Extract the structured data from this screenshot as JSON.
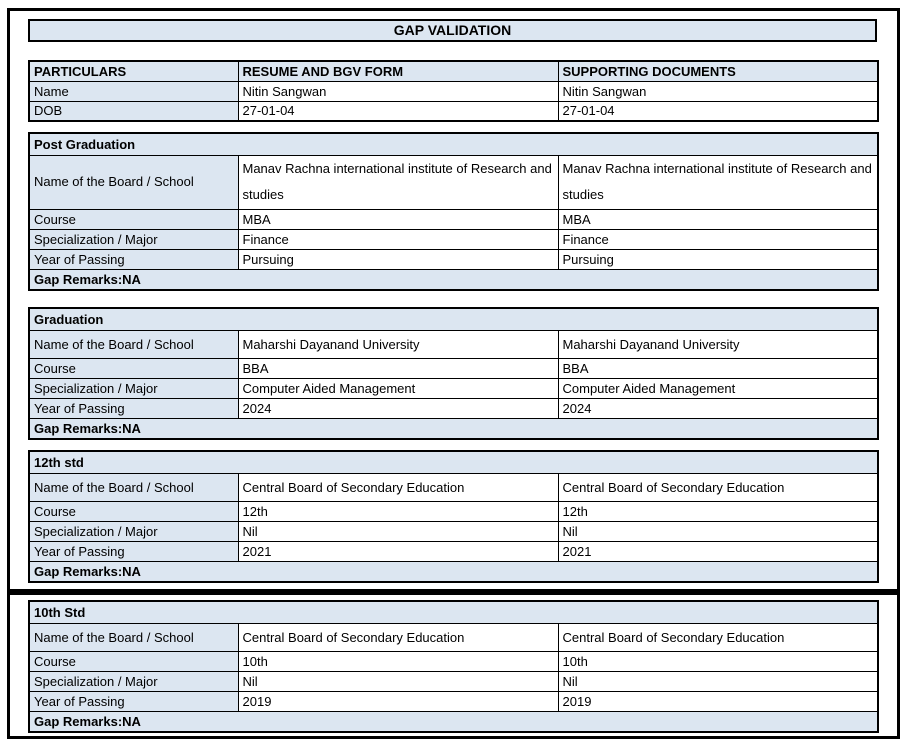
{
  "title": "GAP VALIDATION",
  "colors": {
    "accent_fill": "#dce6f1",
    "border": "#000000",
    "background": "#ffffff"
  },
  "table": {
    "headers": [
      "PARTICULARS",
      "RESUME AND BGV FORM",
      "SUPPORTING DOCUMENTS"
    ],
    "rows": [
      {
        "label": "Name",
        "resume": "Nitin Sangwan",
        "supporting": "Nitin Sangwan"
      },
      {
        "label": "DOB",
        "resume": "27-01-04",
        "supporting": "27-01-04"
      }
    ]
  },
  "sections": [
    {
      "heading": "Post Graduation",
      "rows": [
        {
          "label": "Name of the Board / School",
          "resume": "Manav Rachna international institute of Research and studies",
          "supporting": "Manav Rachna international institute of Research and studies"
        },
        {
          "label": "Course",
          "resume": "MBA",
          "supporting": "MBA"
        },
        {
          "label": "Specialization / Major",
          "resume": "Finance",
          "supporting": "Finance"
        },
        {
          "label": "Year of Passing",
          "resume": "Pursuing",
          "supporting": "Pursuing"
        }
      ],
      "remarks": "Gap Remarks:NA"
    },
    {
      "heading": "Graduation",
      "rows": [
        {
          "label": "Name of the Board / School",
          "resume": "Maharshi Dayanand University",
          "supporting": "Maharshi Dayanand University"
        },
        {
          "label": "Course",
          "resume": "BBA",
          "supporting": "BBA"
        },
        {
          "label": "Specialization / Major",
          "resume": "Computer Aided Management",
          "supporting": "Computer Aided Management"
        },
        {
          "label": "Year of Passing",
          "resume": "2024",
          "supporting": "2024"
        }
      ],
      "remarks": "Gap Remarks:NA"
    },
    {
      "heading": "12th std",
      "rows": [
        {
          "label": "Name of the Board / School",
          "resume": "Central Board of Secondary Education",
          "supporting": "Central Board of Secondary Education"
        },
        {
          "label": "Course",
          "resume": "12th",
          "supporting": "12th"
        },
        {
          "label": "Specialization / Major",
          "resume": "Nil",
          "supporting": "Nil"
        },
        {
          "label": "Year of Passing",
          "resume": "2021",
          "supporting": "2021"
        }
      ],
      "remarks": "Gap Remarks:NA"
    },
    {
      "heading": "10th Std",
      "rows": [
        {
          "label": "Name of the Board / School",
          "resume": "Central Board of Secondary Education",
          "supporting": "Central Board of Secondary Education"
        },
        {
          "label": "Course",
          "resume": "10th",
          "supporting": "10th"
        },
        {
          "label": "Specialization / Major",
          "resume": "Nil",
          "supporting": "Nil"
        },
        {
          "label": "Year of Passing",
          "resume": "2019",
          "supporting": "2019"
        }
      ],
      "remarks": "Gap Remarks:NA"
    }
  ]
}
